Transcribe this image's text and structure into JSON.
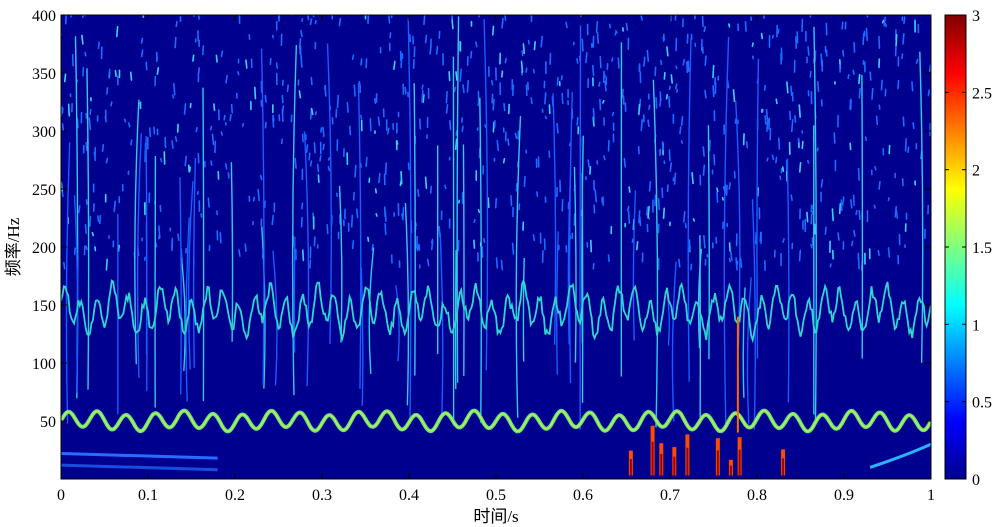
{
  "chart_data": {
    "type": "heatmap",
    "title": "",
    "xlabel": "时间/s",
    "ylabel": "频率/Hz",
    "xlim": [
      0,
      1
    ],
    "ylim": [
      0,
      400
    ],
    "x_ticks": [
      "0",
      "0.1",
      "0.2",
      "0.3",
      "0.4",
      "0.5",
      "0.6",
      "0.7",
      "0.8",
      "0.9",
      "1"
    ],
    "y_ticks": [
      "50",
      "100",
      "150",
      "200",
      "250",
      "300",
      "350",
      "400"
    ],
    "colorbar": {
      "range": [
        0,
        3
      ],
      "ticks": [
        "0",
        "0.5",
        "1",
        "1.5",
        "2",
        "2.5",
        "3"
      ],
      "colormap": "jet"
    },
    "background_color": "#00008f",
    "features": [
      {
        "description_band": "fundamental",
        "center_hz": 50,
        "intensity": 1.4
      },
      {
        "description_band": "harmonic",
        "center_hz": 150,
        "intensity": 1.0
      },
      {
        "description_band": "low-frequency bursts",
        "x_range": [
          0.66,
          0.8
        ],
        "intensity": 2.8
      }
    ]
  }
}
